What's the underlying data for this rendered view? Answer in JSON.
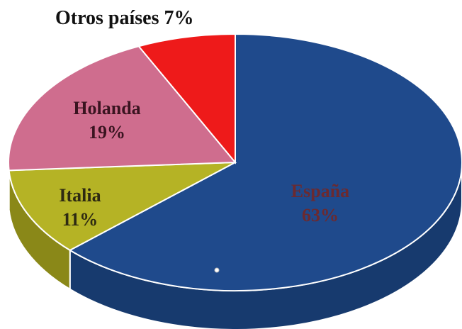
{
  "chart_data": {
    "type": "pie",
    "style": "3d",
    "slices": [
      {
        "name": "España",
        "value": 63,
        "label": "63%",
        "color": "#1f4a8c",
        "side_color": "#173a6e"
      },
      {
        "name": "Italia",
        "value": 11,
        "label": "11%",
        "color": "#b5b325",
        "side_color": "#8a8818"
      },
      {
        "name": "Holanda",
        "value": 19,
        "label": "19%",
        "color": "#cf6d8e",
        "side_color": "#a9566f"
      },
      {
        "name": "Otros países",
        "value": 7,
        "label": "7%",
        "color": "#ee1a1a",
        "side_color": "#b00e0e"
      }
    ],
    "external_label": "Otros países 7%"
  }
}
